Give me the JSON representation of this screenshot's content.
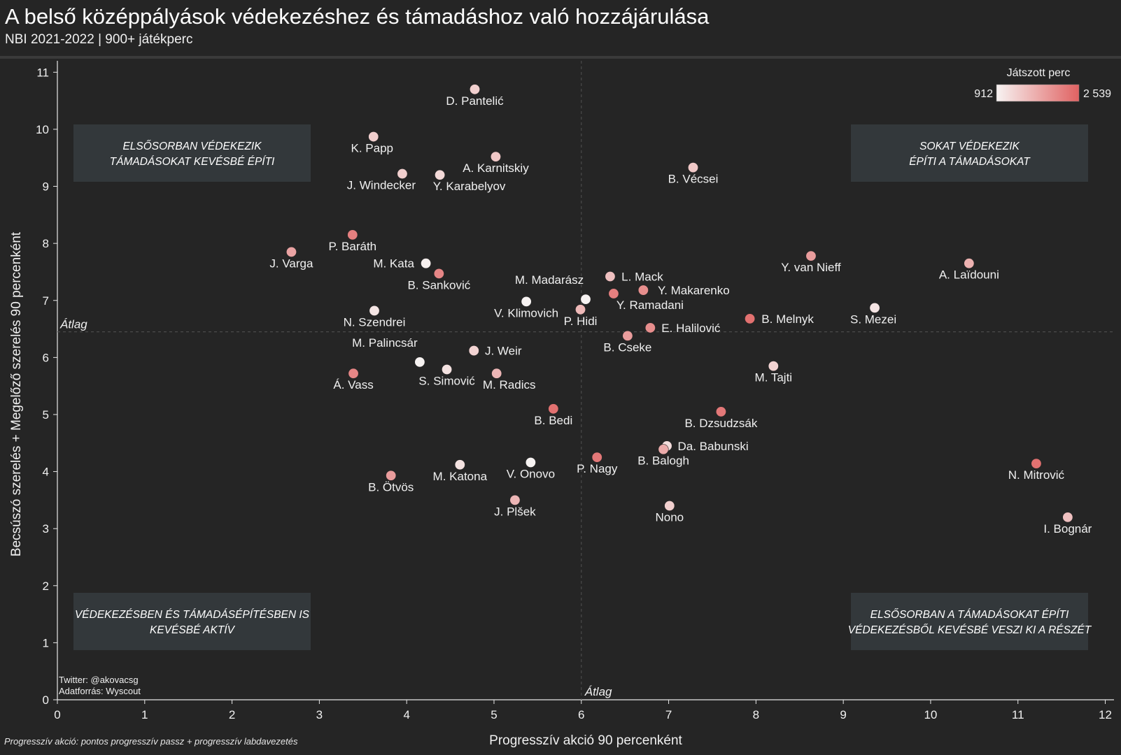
{
  "header": {
    "title": "A belső középpályások védekezéshez és támadáshoz való hozzájárulása",
    "subtitle": "NBI 2021-2022 | 900+ játékperc"
  },
  "footnote": "Progresszív akció: pontos progresszív passz + progresszív labdavezetés",
  "credits": {
    "line1": "Twitter: @akovacsg",
    "line2": "Adatforrás: Wyscout"
  },
  "colors": {
    "background": "#252525",
    "low": "#f7f3f2",
    "high": "#e06262",
    "quadrant_box": "#33383b"
  },
  "legend": {
    "title": "Játszott perc",
    "min_label": "912",
    "max_label": "2 539"
  },
  "quadrants": [
    {
      "pos": "top-left",
      "line1": "ELSŐSORBAN VÉDEKEZIK",
      "line2": "TÁMADÁSOKAT KEVÉSBÉ ÉPÍTI"
    },
    {
      "pos": "top-right",
      "line1": "SOKAT VÉDEKEZIK",
      "line2": "ÉPÍTI A TÁMADÁSOKAT"
    },
    {
      "pos": "bottom-left",
      "line1": "VÉDEKEZÉSBEN ÉS TÁMADÁSÉPÍTÉSBEN IS",
      "line2": "KEVÉSBÉ AKTÍV"
    },
    {
      "pos": "bottom-right",
      "line1": "ELSŐSORBAN A TÁMADÁSOKAT ÉPÍTI",
      "line2": "VÉDEKEZÉSBŐL KEVÉSBÉ VESZI KI A RÉSZÉT"
    }
  ],
  "chart_data": {
    "type": "scatter",
    "xlabel": "Progresszív akció 90 percenként",
    "ylabel": "Becsúszó szerelés + Megelőző szerelés 90 percenként",
    "xlim": [
      0,
      12.1
    ],
    "ylim": [
      0,
      11.2
    ],
    "xticks": [
      0,
      1,
      2,
      3,
      4,
      5,
      6,
      7,
      8,
      9,
      10,
      11,
      12
    ],
    "yticks": [
      0,
      1,
      2,
      3,
      4,
      5,
      6,
      7,
      8,
      9,
      10,
      11
    ],
    "grid": false,
    "avg_x": 6.0,
    "avg_y": 6.45,
    "avg_label": "Átlag",
    "color_scale": "minutes played",
    "legend_position": "top-right",
    "points": [
      {
        "name": "D. Pantelić",
        "x": 4.78,
        "y": 10.7,
        "t": 0.25,
        "lx": 0,
        "ly": 22
      },
      {
        "name": "K. Papp",
        "x": 3.62,
        "y": 9.87,
        "t": 0.25,
        "lx": -2,
        "ly": 22
      },
      {
        "name": "A. Karnitskiy",
        "x": 5.02,
        "y": 9.52,
        "t": 0.3,
        "lx": 0,
        "ly": 22
      },
      {
        "name": "J. Windecker",
        "x": 3.95,
        "y": 9.22,
        "t": 0.25,
        "lx": -30,
        "ly": 22
      },
      {
        "name": "Y. Karabelyov",
        "x": 4.38,
        "y": 9.2,
        "t": 0.18,
        "lx": 42,
        "ly": 22
      },
      {
        "name": "B. Vécsei",
        "x": 7.28,
        "y": 9.33,
        "t": 0.3,
        "lx": 0,
        "ly": 22
      },
      {
        "name": "P. Baráth",
        "x": 3.38,
        "y": 8.15,
        "t": 0.8,
        "lx": 0,
        "ly": 22
      },
      {
        "name": "J. Varga",
        "x": 2.68,
        "y": 7.85,
        "t": 0.55,
        "lx": 0,
        "ly": 22
      },
      {
        "name": "M. Kata",
        "x": 4.22,
        "y": 7.65,
        "t": 0.02,
        "lx": -46,
        "ly": 0
      },
      {
        "name": "B. Sanković",
        "x": 4.37,
        "y": 7.47,
        "t": 0.75,
        "lx": 0,
        "ly": 22
      },
      {
        "name": "Y. van Nieff",
        "x": 8.63,
        "y": 7.78,
        "t": 0.6,
        "lx": 0,
        "ly": 22
      },
      {
        "name": "A. Laïdouni",
        "x": 10.44,
        "y": 7.65,
        "t": 0.45,
        "lx": 0,
        "ly": 22
      },
      {
        "name": "L. Mack",
        "x": 6.33,
        "y": 7.42,
        "t": 0.35,
        "lx": 46,
        "ly": 0
      },
      {
        "name": "Y. Makarenko",
        "x": 6.71,
        "y": 7.18,
        "t": 0.7,
        "lx": 72,
        "ly": 0
      },
      {
        "name": "M. Madarász",
        "x": 6.05,
        "y": 7.02,
        "t": 0.0,
        "lx": -52,
        "ly": -22
      },
      {
        "name": "Y. Ramadani",
        "x": 6.37,
        "y": 7.12,
        "t": 0.8,
        "lx": 52,
        "ly": 22
      },
      {
        "name": "V. Klimovich",
        "x": 5.37,
        "y": 6.98,
        "t": 0.0,
        "lx": 0,
        "ly": 22
      },
      {
        "name": "P. Hidi",
        "x": 5.99,
        "y": 6.84,
        "t": 0.4,
        "lx": 0,
        "ly": 22
      },
      {
        "name": "N. Szendrei",
        "x": 3.63,
        "y": 6.82,
        "t": 0.1,
        "lx": 0,
        "ly": 22
      },
      {
        "name": "S. Mezei",
        "x": 9.36,
        "y": 6.87,
        "t": 0.1,
        "lx": -2,
        "ly": 22
      },
      {
        "name": "B. Melnyk",
        "x": 7.93,
        "y": 6.68,
        "t": 0.9,
        "lx": 54,
        "ly": 0
      },
      {
        "name": "E. Halilović",
        "x": 6.79,
        "y": 6.52,
        "t": 0.7,
        "lx": 58,
        "ly": 0
      },
      {
        "name": "B. Cseke",
        "x": 6.53,
        "y": 6.38,
        "t": 0.6,
        "lx": 0,
        "ly": 22
      },
      {
        "name": "J. Weir",
        "x": 4.77,
        "y": 6.12,
        "t": 0.22,
        "lx": 42,
        "ly": 0
      },
      {
        "name": "M. Palincsár",
        "x": 4.15,
        "y": 5.92,
        "t": 0.0,
        "lx": -50,
        "ly": -22
      },
      {
        "name": "M. Tajti",
        "x": 8.2,
        "y": 5.85,
        "t": 0.22,
        "lx": 0,
        "ly": 22
      },
      {
        "name": "S. Simović",
        "x": 4.46,
        "y": 5.79,
        "t": 0.12,
        "lx": 0,
        "ly": 22
      },
      {
        "name": "Á. Vass",
        "x": 3.39,
        "y": 5.72,
        "t": 0.75,
        "lx": 0,
        "ly": 22
      },
      {
        "name": "M. Radics",
        "x": 5.03,
        "y": 5.72,
        "t": 0.42,
        "lx": 18,
        "ly": 22
      },
      {
        "name": "B. Bedi",
        "x": 5.68,
        "y": 5.1,
        "t": 0.9,
        "lx": 0,
        "ly": 22
      },
      {
        "name": "B. Dzsudzsák",
        "x": 7.6,
        "y": 5.05,
        "t": 0.85,
        "lx": 0,
        "ly": 22
      },
      {
        "name": "Da. Babunski",
        "x": 6.98,
        "y": 4.45,
        "t": 0.15,
        "lx": 66,
        "ly": 0
      },
      {
        "name": "B. Balogh",
        "x": 6.94,
        "y": 4.39,
        "t": 0.5,
        "lx": 0,
        "ly": 22
      },
      {
        "name": "P. Nagy",
        "x": 6.18,
        "y": 4.25,
        "t": 0.85,
        "lx": 0,
        "ly": 22
      },
      {
        "name": "V. Onovo",
        "x": 5.42,
        "y": 4.16,
        "t": 0.0,
        "lx": 0,
        "ly": 22
      },
      {
        "name": "M. Katona",
        "x": 4.61,
        "y": 4.12,
        "t": 0.12,
        "lx": 0,
        "ly": 22
      },
      {
        "name": "N. Mitrović",
        "x": 11.21,
        "y": 4.14,
        "t": 0.9,
        "lx": 0,
        "ly": 22
      },
      {
        "name": "B. Ötvös",
        "x": 3.82,
        "y": 3.93,
        "t": 0.6,
        "lx": 0,
        "ly": 22
      },
      {
        "name": "J. Plšek",
        "x": 5.24,
        "y": 3.5,
        "t": 0.42,
        "lx": 0,
        "ly": 22
      },
      {
        "name": "Nono",
        "x": 7.01,
        "y": 3.4,
        "t": 0.25,
        "lx": 0,
        "ly": 22
      },
      {
        "name": "I. Bognár",
        "x": 11.57,
        "y": 3.2,
        "t": 0.35,
        "lx": 0,
        "ly": 22
      }
    ]
  }
}
